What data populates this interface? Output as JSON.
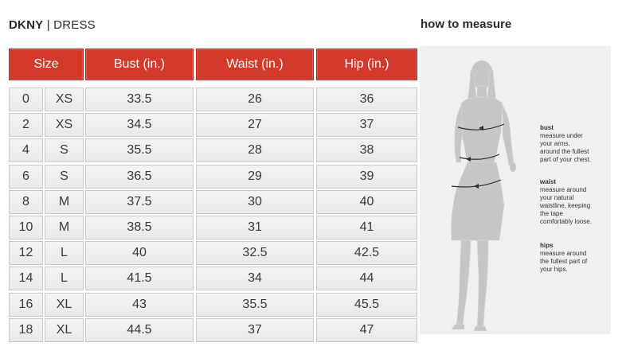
{
  "brand": {
    "name": "DKNY",
    "separator": "|",
    "category": "DRESS"
  },
  "measure_title": "how to measure",
  "table": {
    "headers": {
      "size": "Size",
      "bust": "Bust (in.)",
      "waist": "Waist (in.)",
      "hip": "Hip (in.)"
    },
    "rows": [
      {
        "num": "0",
        "letter": "XS",
        "bust": "33.5",
        "waist": "26",
        "hip": "36"
      },
      {
        "num": "2",
        "letter": "XS",
        "bust": "34.5",
        "waist": "27",
        "hip": "37"
      },
      {
        "num": "4",
        "letter": "S",
        "bust": "35.5",
        "waist": "28",
        "hip": "38"
      },
      {
        "num": "6",
        "letter": "S",
        "bust": "36.5",
        "waist": "29",
        "hip": "39"
      },
      {
        "num": "8",
        "letter": "M",
        "bust": "37.5",
        "waist": "30",
        "hip": "40"
      },
      {
        "num": "10",
        "letter": "M",
        "bust": "38.5",
        "waist": "31",
        "hip": "41"
      },
      {
        "num": "12",
        "letter": "L",
        "bust": "40",
        "waist": "32.5",
        "hip": "42.5"
      },
      {
        "num": "14",
        "letter": "L",
        "bust": "41.5",
        "waist": "34",
        "hip": "44"
      },
      {
        "num": "16",
        "letter": "XL",
        "bust": "43",
        "waist": "35.5",
        "hip": "45.5"
      },
      {
        "num": "18",
        "letter": "XL",
        "bust": "44.5",
        "waist": "37",
        "hip": "47"
      }
    ]
  },
  "guide": {
    "bust": {
      "title": "bust",
      "lines": [
        "measure under",
        "your arms,",
        "around the fullest",
        "part of your chest."
      ]
    },
    "waist": {
      "title": "waist",
      "lines": [
        "measure around",
        "your natural",
        "waistline, keeping",
        "the tape",
        "comfortably loose."
      ]
    },
    "hips": {
      "title": "hips",
      "lines": [
        "measure around",
        "the fullest part of",
        "your hips."
      ]
    }
  },
  "colors": {
    "header_bg": "#d33a2c",
    "cell_bg": "#eeeeee",
    "panel_bg": "#f0f0f0",
    "figure": "#c4c4c4"
  }
}
